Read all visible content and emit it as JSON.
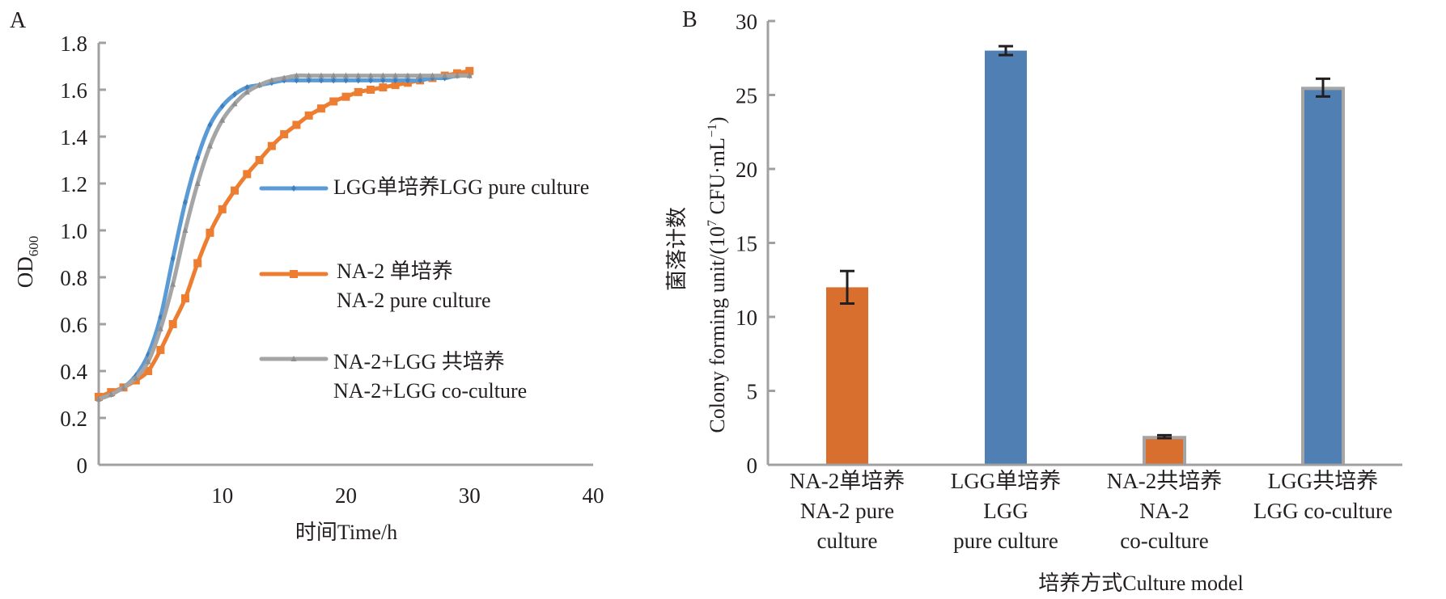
{
  "chart_data": [
    {
      "panel_label": "A",
      "type": "line",
      "xlabel": "时间Time/h",
      "ylabel_main": "OD",
      "ylabel_sub": "600",
      "xlim": [
        0,
        40
      ],
      "ylim": [
        0,
        1.8
      ],
      "x_ticks": [
        "10",
        "20",
        "30",
        "40"
      ],
      "x_tick_values": [
        10,
        20,
        30,
        40
      ],
      "y_ticks": [
        "0",
        "0.2",
        "0.4",
        "0.6",
        "0.8",
        "1.0",
        "1.2",
        "1.4",
        "1.6",
        "1.8"
      ],
      "y_tick_values": [
        0,
        0.2,
        0.4,
        0.6,
        0.8,
        1.0,
        1.2,
        1.4,
        1.6,
        1.8
      ],
      "grid": false,
      "legend_position": "right-center",
      "x": [
        0,
        1,
        2,
        3,
        4,
        5,
        6,
        7,
        8,
        9,
        10,
        11,
        12,
        13,
        14,
        15,
        16,
        17,
        18,
        19,
        20,
        21,
        22,
        23,
        24,
        25,
        26,
        27,
        28,
        29,
        30
      ],
      "series": [
        {
          "name": "LGG单培养LGG pure culture",
          "legend_lines": [
            "LGG单培养LGG pure culture"
          ],
          "color": "#5b9bd5",
          "marker": "diamond",
          "values": [
            0.28,
            0.3,
            0.33,
            0.38,
            0.47,
            0.63,
            0.88,
            1.12,
            1.31,
            1.45,
            1.53,
            1.58,
            1.61,
            1.62,
            1.63,
            1.64,
            1.64,
            1.64,
            1.64,
            1.64,
            1.64,
            1.64,
            1.64,
            1.64,
            1.64,
            1.64,
            1.64,
            1.65,
            1.65,
            1.66,
            1.66
          ]
        },
        {
          "name": "NA-2 单培养 NA-2 pure culture",
          "legend_lines": [
            "NA-2 单培养",
            "NA-2 pure culture"
          ],
          "color": "#ed7d31",
          "marker": "square",
          "values": [
            0.29,
            0.31,
            0.33,
            0.36,
            0.4,
            0.49,
            0.6,
            0.71,
            0.86,
            0.99,
            1.09,
            1.17,
            1.24,
            1.3,
            1.36,
            1.41,
            1.45,
            1.49,
            1.52,
            1.55,
            1.57,
            1.59,
            1.6,
            1.61,
            1.62,
            1.63,
            1.64,
            1.65,
            1.66,
            1.67,
            1.68
          ]
        },
        {
          "name": "NA-2+LGG 共培养 NA-2+LGG co-culture",
          "legend_lines": [
            "NA-2+LGG 共培养",
            "NA-2+LGG co-culture"
          ],
          "color": "#a5a5a5",
          "marker": "triangle",
          "values": [
            0.28,
            0.3,
            0.33,
            0.37,
            0.44,
            0.58,
            0.77,
            1.0,
            1.2,
            1.36,
            1.47,
            1.54,
            1.59,
            1.62,
            1.64,
            1.65,
            1.66,
            1.66,
            1.66,
            1.66,
            1.66,
            1.66,
            1.66,
            1.66,
            1.66,
            1.66,
            1.66,
            1.66,
            1.66,
            1.66,
            1.66
          ]
        }
      ]
    },
    {
      "panel_label": "B",
      "type": "bar",
      "xlabel": "培养方式Culture model",
      "ylabel_cn": "菌落计数",
      "ylabel_en_prefix": "Colony forming unit/(10",
      "ylabel_en_sup": "7",
      "ylabel_en_mid": " CFU·mL",
      "ylabel_en_sup2": "−1",
      "ylabel_en_suffix": ")",
      "ylim": [
        0,
        30
      ],
      "y_ticks": [
        "0",
        "5",
        "10",
        "15",
        "20",
        "25",
        "30"
      ],
      "y_tick_values": [
        0,
        5,
        10,
        15,
        20,
        25,
        30
      ],
      "grid": false,
      "categories": [
        [
          "NA-2单培养",
          "NA-2 pure",
          "culture"
        ],
        [
          "LGG单培养",
          "LGG",
          "pure culture"
        ],
        [
          "NA-2共培养",
          "NA-2",
          "co-culture"
        ],
        [
          "LGG共培养",
          "LGG co-culture"
        ]
      ],
      "values": [
        12.0,
        28.0,
        1.9,
        25.5
      ],
      "errors": [
        1.1,
        0.3,
        0.1,
        0.6
      ],
      "colors": [
        "#d96f2e",
        "#4f7fb3",
        "#d96f2e",
        "#4f7fb3"
      ],
      "outlined": [
        false,
        false,
        true,
        true
      ]
    }
  ]
}
